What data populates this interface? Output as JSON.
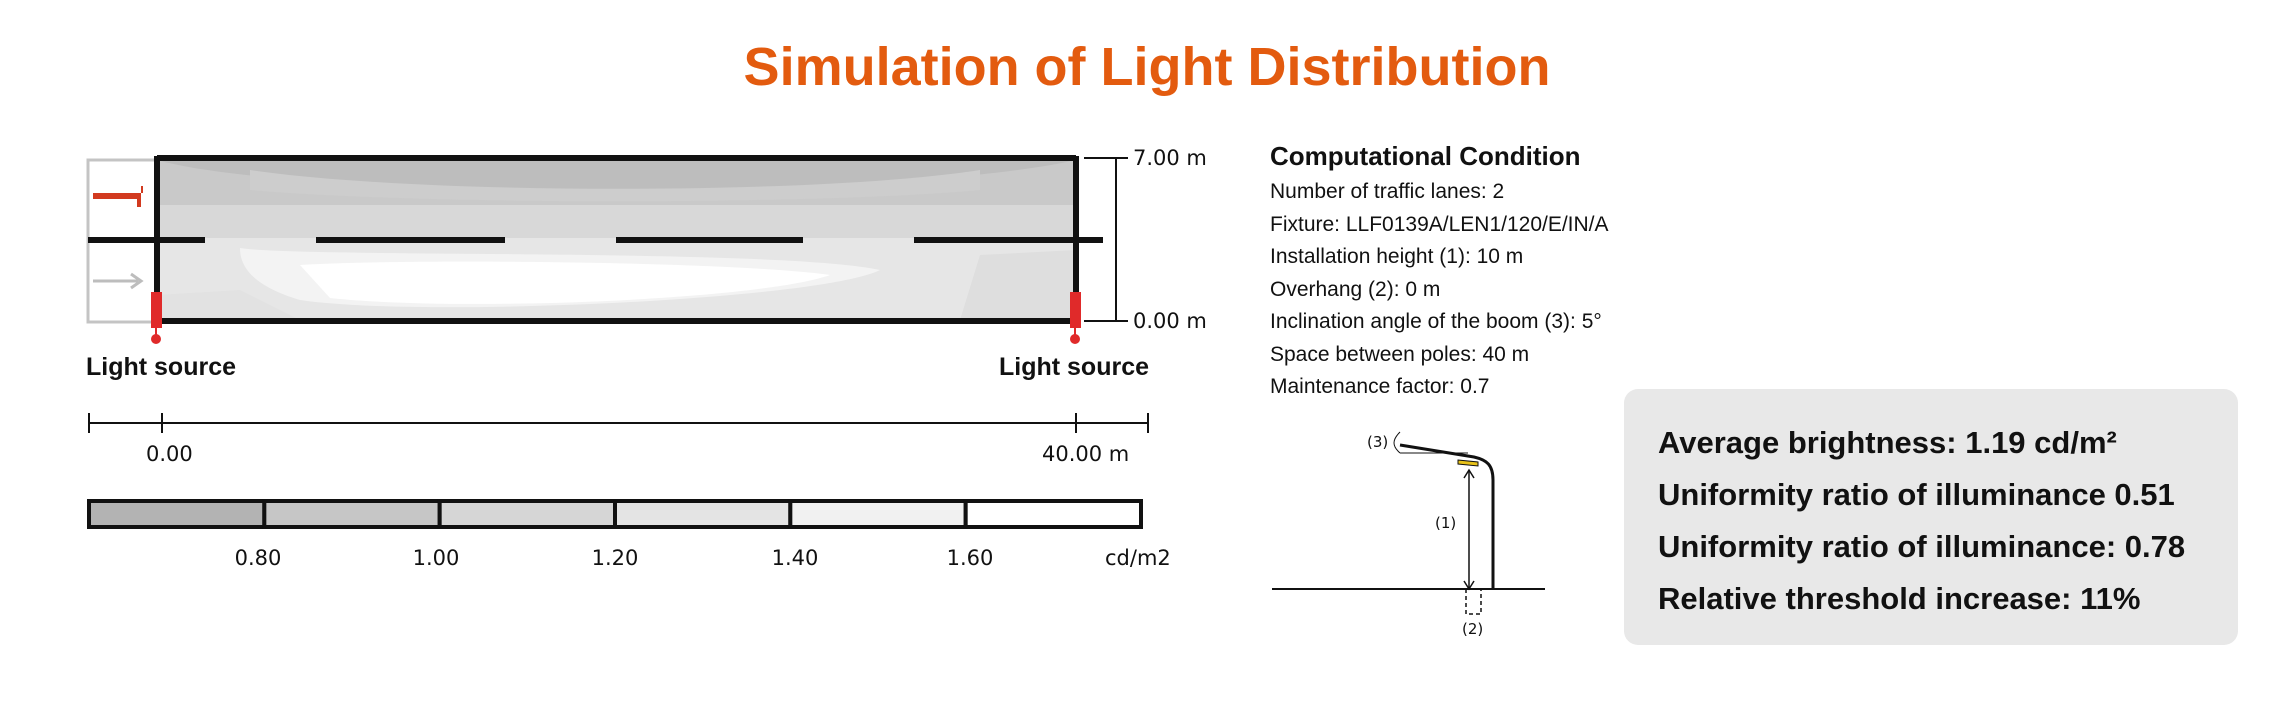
{
  "title": "Simulation of Light Distribution",
  "road": {
    "top_label": "7.00 m",
    "bottom_label": "0.00 m",
    "light_source_left": "Light source",
    "light_source_right": "Light source"
  },
  "distance_axis": {
    "start_label": "0.00",
    "end_label": "40.00 m"
  },
  "legend": {
    "values": [
      "0.80",
      "1.00",
      "1.20",
      "1.40",
      "1.60"
    ],
    "unit": "cd/m2",
    "colors": [
      "#b3b3b3",
      "#c6c6c6",
      "#d6d6d6",
      "#e4e4e4",
      "#f1f1f1",
      "#ffffff"
    ]
  },
  "condition": {
    "heading": "Computational Condition",
    "items": [
      "Number of traffic lanes: 2",
      "Fixture: LLF0139A/LEN1/120/E/IN/A",
      "Installation height (1): 10 m",
      "Overhang (2): 0 m",
      "Inclination angle of the boom (3): 5°",
      "Space between poles: 40 m",
      "Maintenance factor: 0.7"
    ]
  },
  "pole_diagram": {
    "label_1": "(1)",
    "label_2": "(2)",
    "label_3": "(3)"
  },
  "summary": {
    "line1": "Average brightness: 1.19 cd/m²",
    "line2": "Uniformity ratio of illuminance 0.51",
    "line3": "Uniformity ratio of illuminance: 0.78",
    "line4": "Relative threshold increase: 11%"
  },
  "colors": {
    "accent": "#e35b0f",
    "pole_red": "#e02a2a",
    "arrow_gray": "#bdbdbd",
    "summary_bg": "#e8e8e8"
  }
}
